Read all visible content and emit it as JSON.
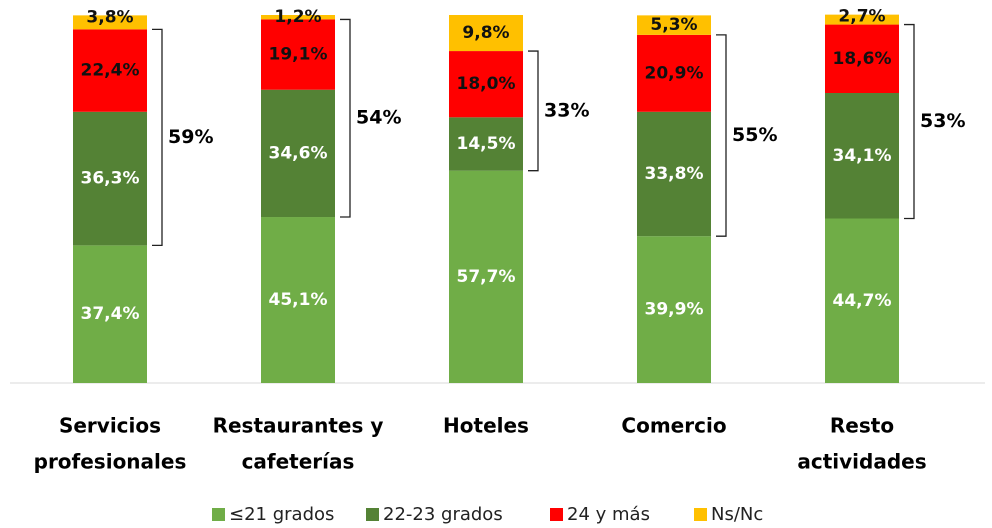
{
  "chart_data": {
    "type": "stacked_bar",
    "categories": [
      [
        "Servicios",
        "profesionales"
      ],
      [
        "Restaurantes y",
        "cafeterías"
      ],
      [
        "Hoteles"
      ],
      [
        "Comercio"
      ],
      [
        "Resto",
        "actividades"
      ]
    ],
    "series": [
      {
        "name": "≤21 grados",
        "color": "#70ad47",
        "values": [
          37.4,
          45.1,
          57.7,
          39.9,
          44.7
        ],
        "value_labels": [
          "37,4%",
          "45,1%",
          "57,7%",
          "39,9%",
          "44,7%"
        ]
      },
      {
        "name": "22-23 grados",
        "color": "#548235",
        "values": [
          36.3,
          34.6,
          14.5,
          33.8,
          34.1
        ],
        "value_labels": [
          "36,3%",
          "34,6%",
          "14,5%",
          "33,8%",
          "34,1%"
        ]
      },
      {
        "name": "24 y más",
        "color": "#ff0000",
        "values": [
          22.4,
          19.1,
          18.0,
          20.9,
          18.6
        ],
        "value_labels": [
          "22,4%",
          "19,1%",
          "18,0%",
          "20,9%",
          "18,6%"
        ]
      },
      {
        "name": "Ns/Nc",
        "color": "#ffc000",
        "values": [
          3.8,
          1.2,
          9.8,
          5.3,
          2.7
        ],
        "value_labels": [
          "3,8%",
          "1,2%",
          "9,8%",
          "5,3%",
          "2,7%"
        ]
      }
    ],
    "bracket_labels": [
      "59%",
      "54%",
      "33%",
      "55%",
      "53%"
    ],
    "ylim": [
      0,
      100
    ]
  }
}
